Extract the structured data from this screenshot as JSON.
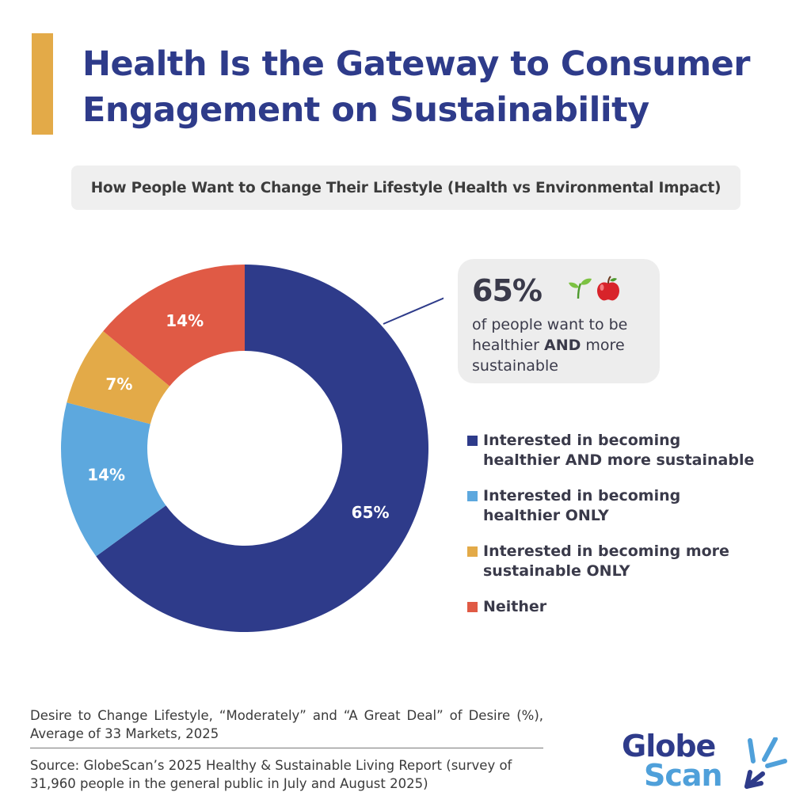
{
  "title": {
    "line1": "Health Is the Gateway to Consumer",
    "line2": "Engagement on Sustainability"
  },
  "colors": {
    "navy": "#2E3B8A",
    "light_blue": "#5DA8DE",
    "gold": "#E3AA48",
    "red": "#E05A45",
    "accent_bar": "#E3AA48"
  },
  "callout": {
    "value": "65%",
    "icons": [
      "seedling-icon",
      "apple-icon"
    ],
    "text_part1": "of people want to be healthier",
    "text_bold": "AND",
    "text_part2": "more sustainable"
  },
  "chart_data": {
    "type": "pie",
    "title": "How People Want to Change Their Lifestyle (Health vs Environmental Impact)",
    "donut": true,
    "categories": [
      "Interested in becoming healthier AND more sustainable",
      "Interested in becoming healthier ONLY",
      "Interested in becoming more sustainable ONLY",
      "Neither"
    ],
    "values": [
      65,
      14,
      7,
      14
    ],
    "data_labels": [
      "65%",
      "14%",
      "7%",
      "14%"
    ],
    "colors": [
      "#2E3B8A",
      "#5DA8DE",
      "#E3AA48",
      "#E05A45"
    ],
    "legend_position": "right"
  },
  "note": "Desire to Change Lifestyle, “Moderately” and “A Great Deal” of Desire (%), Average of 33 Markets, 2025",
  "source": "Source: GlobeScan’s 2025 Healthy & Sustainable Living Report (survey of 31,960 people in the general public in July and August 2025)",
  "logo": {
    "line1": "Globe",
    "line2": "Scan"
  }
}
